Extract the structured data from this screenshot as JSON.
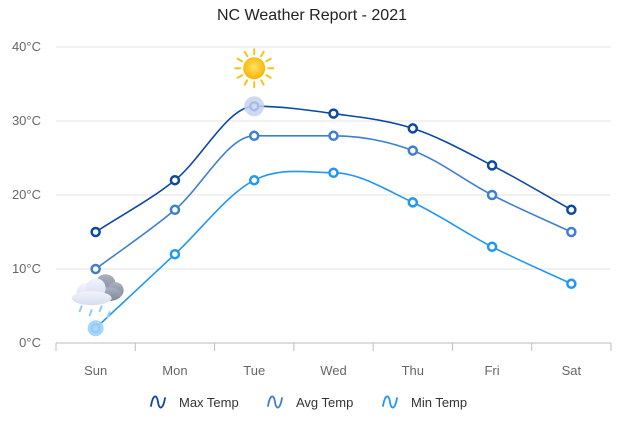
{
  "chart_data": {
    "type": "line",
    "title": "NC Weather Report - 2021",
    "categories": [
      "Sun",
      "Mon",
      "Tue",
      "Wed",
      "Thu",
      "Fri",
      "Sat"
    ],
    "series": [
      {
        "name": "Max Temp",
        "values": [
          15,
          22,
          32,
          31,
          29,
          24,
          18
        ],
        "color": "#0d47a1"
      },
      {
        "name": "Avg Temp",
        "values": [
          10,
          18,
          28,
          28,
          26,
          20,
          15
        ],
        "color": "#3e7fd0"
      },
      {
        "name": "Min Temp",
        "values": [
          2,
          12,
          22,
          23,
          19,
          13,
          8
        ],
        "color": "#2196f3"
      }
    ],
    "y_ticks": [
      "0°C",
      "10°C",
      "20°C",
      "30°C",
      "40°C"
    ],
    "ylim": [
      0,
      40
    ],
    "grid": "horizontal",
    "legend_position": "bottom",
    "weather_icons": [
      {
        "name": "sun-icon",
        "category": "Tue"
      },
      {
        "name": "rain-cloud-icon",
        "category": "Sun"
      }
    ]
  }
}
